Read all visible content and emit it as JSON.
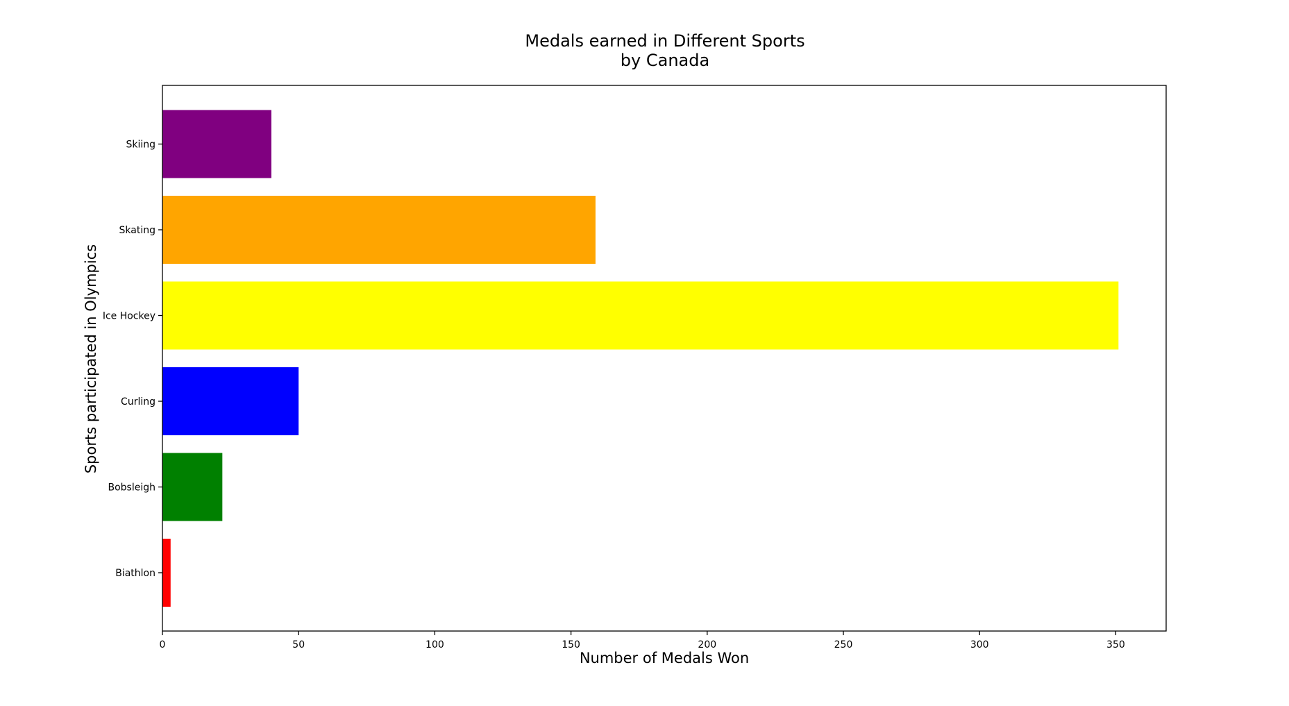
{
  "chart_data": {
    "type": "bar",
    "orientation": "horizontal",
    "title": "Medals earned in Different Sports\nby Canada",
    "title_lines": [
      "Medals earned in Different Sports",
      "by Canada"
    ],
    "xlabel": "Number of Medals Won",
    "ylabel": "Sports participated in Olympics",
    "categories": [
      "Biathlon",
      "Bobsleigh",
      "Curling",
      "Ice Hockey",
      "Skating",
      "Skiing"
    ],
    "values": [
      3,
      22,
      50,
      351,
      159,
      40
    ],
    "colors": [
      "#ff0000",
      "#008000",
      "#0000ff",
      "#ffff00",
      "#ffa500",
      "#800080"
    ],
    "xlim": [
      0,
      368.5
    ],
    "xticks": [
      0,
      50,
      100,
      150,
      200,
      250,
      300,
      350
    ],
    "grid": false,
    "legend": "none"
  }
}
